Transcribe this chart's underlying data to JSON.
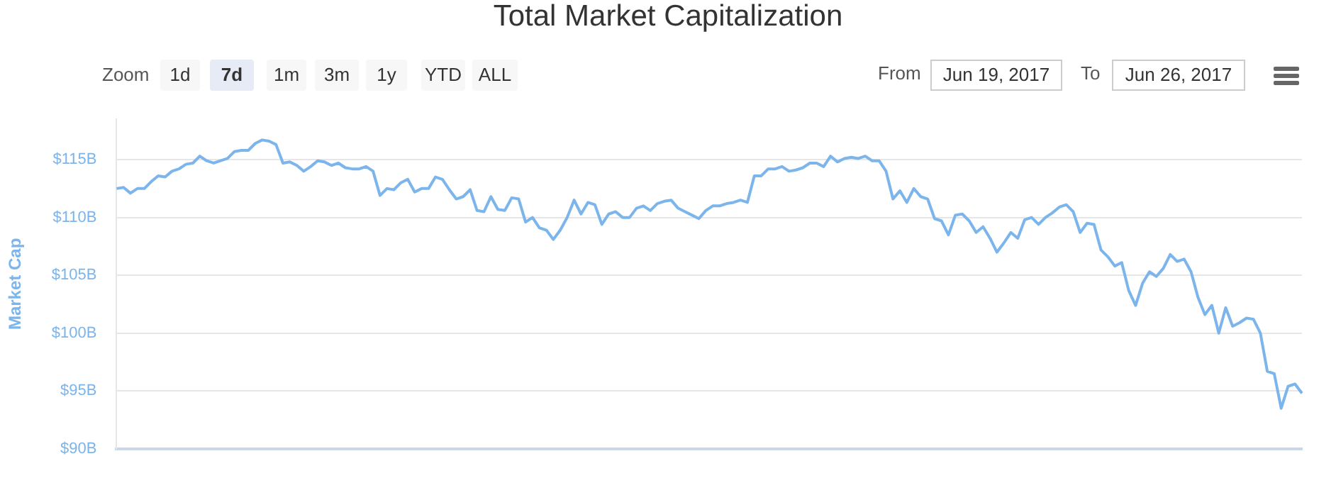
{
  "chart_data": {
    "type": "line",
    "title": "Total Market Capitalization",
    "ylabel": "Market Cap",
    "annotations": [
      "Zoom",
      "1d",
      "7d",
      "1m",
      "3m",
      "1y",
      "YTD",
      "ALL",
      "From",
      "Jun 19, 2017",
      "To",
      "Jun 26, 2017"
    ],
    "categories": [
      null,
      null,
      null,
      null,
      null,
      null,
      null,
      null,
      null,
      null,
      null,
      null,
      null,
      null,
      null,
      null,
      null,
      null,
      null,
      null,
      null,
      null,
      null,
      null,
      null,
      null,
      null,
      null,
      null,
      null,
      null,
      null,
      null,
      null,
      null,
      null,
      null,
      null,
      null,
      null,
      null,
      null,
      null,
      null,
      null,
      null,
      null,
      null,
      null,
      null,
      null,
      null,
      null,
      null,
      null,
      null,
      null,
      null,
      null,
      null,
      null,
      null,
      null,
      null,
      null,
      null,
      null,
      null,
      null,
      null,
      null,
      null,
      null,
      null,
      null,
      null,
      null,
      null,
      null,
      null,
      null,
      null,
      null,
      null,
      null,
      null,
      null,
      null,
      null,
      null,
      null,
      null,
      null,
      null,
      null,
      null,
      null,
      null,
      null,
      null,
      null,
      null,
      null,
      null,
      null,
      null,
      null,
      null,
      null,
      null,
      null,
      null,
      null,
      null,
      null,
      null,
      null,
      null,
      null,
      null,
      null,
      null,
      null,
      null,
      null,
      null,
      null,
      null,
      null,
      null,
      null,
      null,
      null,
      null,
      null,
      null,
      null,
      null,
      null,
      null,
      null,
      null,
      null,
      null,
      null,
      null,
      null,
      null,
      null,
      null,
      null,
      null,
      null,
      null,
      null,
      null,
      null,
      null,
      null,
      null,
      null,
      null,
      null,
      null,
      null,
      null,
      null,
      null,
      null,
      null,
      null,
      null
    ],
    "series": [
      {
        "color": "#7cb5ec",
        "values": [
          112.5,
          112.6,
          112.1,
          112.5,
          112.5,
          113.1,
          113.6,
          113.5,
          114.0,
          114.2,
          114.6,
          114.7,
          115.3,
          114.9,
          114.7,
          114.9,
          115.1,
          115.7,
          115.8,
          115.8,
          116.4,
          116.7,
          116.6,
          116.3,
          114.7,
          114.8,
          114.5,
          114.0,
          114.4,
          114.9,
          114.8,
          114.5,
          114.7,
          114.3,
          114.2,
          114.2,
          114.4,
          114.0,
          111.9,
          112.5,
          112.4,
          113.0,
          113.3,
          112.2,
          112.5,
          112.5,
          113.5,
          113.3,
          112.4,
          111.6,
          111.8,
          112.4,
          110.6,
          110.5,
          111.8,
          110.7,
          110.6,
          111.7,
          111.6,
          109.6,
          110.0,
          109.1,
          108.9,
          108.1,
          108.9,
          110.0,
          111.5,
          110.3,
          111.3,
          111.1,
          109.4,
          110.3,
          110.5,
          110.0,
          110.0,
          110.8,
          111.0,
          110.6,
          111.2,
          111.4,
          111.5,
          110.8,
          110.5,
          110.2,
          109.9,
          110.6,
          111.0,
          111.0,
          111.2,
          111.3,
          111.5,
          111.3,
          113.6,
          113.6,
          114.2,
          114.2,
          114.4,
          114.0,
          114.1,
          114.3,
          114.7,
          114.7,
          114.4,
          115.3,
          114.8,
          115.1,
          115.2,
          115.1,
          115.3,
          114.9,
          114.9,
          114.0,
          111.6,
          112.3,
          111.3,
          112.5,
          111.8,
          111.6,
          109.9,
          109.7,
          108.5,
          110.2,
          110.3,
          109.7,
          108.7,
          109.2,
          108.2,
          107.0,
          107.8,
          108.7,
          108.2,
          109.8,
          110.0,
          109.4,
          110.0,
          110.4,
          110.9,
          111.1,
          110.5,
          108.7,
          109.5,
          109.4,
          107.2,
          106.6,
          105.8,
          106.1,
          103.7,
          102.4,
          104.3,
          105.3,
          104.9,
          105.6,
          106.8,
          106.2,
          106.4,
          105.3,
          103.1,
          101.6,
          102.4,
          100.0,
          102.2,
          100.6,
          100.9,
          101.3,
          101.2,
          100.0,
          96.7,
          96.5,
          93.5,
          95.4,
          95.6,
          94.8
        ]
      }
    ],
    "ylim": [
      90,
      118.5
    ],
    "yticks": [
      {
        "value": 90,
        "label": "$90B"
      },
      {
        "value": 95,
        "label": "$95B"
      },
      {
        "value": 100,
        "label": "$100B"
      },
      {
        "value": 105,
        "label": "$105B"
      },
      {
        "value": 110,
        "label": "$110B"
      },
      {
        "value": 115,
        "label": "$115B"
      }
    ],
    "grid": "y",
    "legend": false,
    "marker": "none",
    "line_style": "solid",
    "tick_labels": "y"
  }
}
